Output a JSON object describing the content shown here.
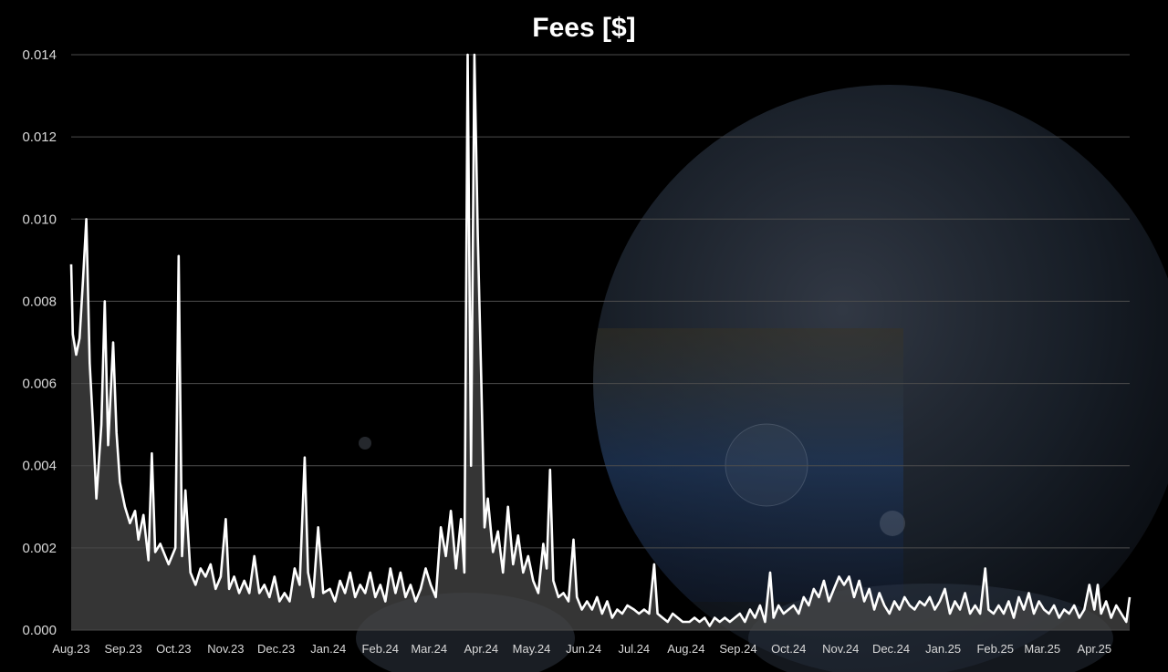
{
  "chart_data": {
    "type": "area",
    "title": "Fees [$]",
    "xlabel": "",
    "ylabel": "",
    "ylim": [
      0,
      0.014
    ],
    "y_ticks": [
      "0.000",
      "0.002",
      "0.004",
      "0.006",
      "0.008",
      "0.010",
      "0.012",
      "0.014"
    ],
    "x_ticks": [
      "Aug.23",
      "Sep.23",
      "Oct.23",
      "Nov.23",
      "Dec.23",
      "Jan.24",
      "Feb.24",
      "Mar.24",
      "Apr.24",
      "May.24",
      "Jun.24",
      "Jul.24",
      "Aug.24",
      "Sep.24",
      "Oct.24",
      "Nov.24",
      "Dec.24",
      "Jan.25",
      "Feb.25",
      "Mar.25",
      "Apr.25"
    ],
    "grid": true,
    "legend": "none",
    "x_unit": "date",
    "series": [
      {
        "color": "#ffffff",
        "fill": "#4a4a4a",
        "points": [
          [
            "2023-08-01",
            0.0089
          ],
          [
            "2023-08-02",
            0.0072
          ],
          [
            "2023-08-04",
            0.0067
          ],
          [
            "2023-08-06",
            0.0071
          ],
          [
            "2023-08-08",
            0.0085
          ],
          [
            "2023-08-10",
            0.01
          ],
          [
            "2023-08-12",
            0.0065
          ],
          [
            "2023-08-14",
            0.005
          ],
          [
            "2023-08-16",
            0.0032
          ],
          [
            "2023-08-19",
            0.005
          ],
          [
            "2023-08-21",
            0.008
          ],
          [
            "2023-08-23",
            0.0045
          ],
          [
            "2023-08-26",
            0.007
          ],
          [
            "2023-08-28",
            0.0048
          ],
          [
            "2023-08-30",
            0.0036
          ],
          [
            "2023-09-02",
            0.003
          ],
          [
            "2023-09-05",
            0.0026
          ],
          [
            "2023-09-08",
            0.0029
          ],
          [
            "2023-09-10",
            0.0022
          ],
          [
            "2023-09-13",
            0.0028
          ],
          [
            "2023-09-16",
            0.0017
          ],
          [
            "2023-09-18",
            0.0043
          ],
          [
            "2023-09-20",
            0.0019
          ],
          [
            "2023-09-23",
            0.0021
          ],
          [
            "2023-09-26",
            0.0018
          ],
          [
            "2023-09-28",
            0.0016
          ],
          [
            "2023-10-02",
            0.002
          ],
          [
            "2023-10-04",
            0.0091
          ],
          [
            "2023-10-06",
            0.0018
          ],
          [
            "2023-10-08",
            0.0034
          ],
          [
            "2023-10-11",
            0.0014
          ],
          [
            "2023-10-14",
            0.0011
          ],
          [
            "2023-10-17",
            0.0015
          ],
          [
            "2023-10-20",
            0.0013
          ],
          [
            "2023-10-23",
            0.0016
          ],
          [
            "2023-10-26",
            0.001
          ],
          [
            "2023-10-29",
            0.0013
          ],
          [
            "2023-11-01",
            0.0027
          ],
          [
            "2023-11-03",
            0.001
          ],
          [
            "2023-11-06",
            0.0013
          ],
          [
            "2023-11-09",
            0.0009
          ],
          [
            "2023-11-12",
            0.0012
          ],
          [
            "2023-11-15",
            0.0009
          ],
          [
            "2023-11-18",
            0.0018
          ],
          [
            "2023-11-21",
            0.0009
          ],
          [
            "2023-11-24",
            0.0011
          ],
          [
            "2023-11-27",
            0.0008
          ],
          [
            "2023-11-30",
            0.0013
          ],
          [
            "2023-12-03",
            0.0007
          ],
          [
            "2023-12-06",
            0.0009
          ],
          [
            "2023-12-09",
            0.0007
          ],
          [
            "2023-12-12",
            0.0015
          ],
          [
            "2023-12-15",
            0.0011
          ],
          [
            "2023-12-18",
            0.0042
          ],
          [
            "2023-12-20",
            0.0014
          ],
          [
            "2023-12-23",
            0.0008
          ],
          [
            "2023-12-26",
            0.0025
          ],
          [
            "2023-12-29",
            0.0009
          ],
          [
            "2024-01-02",
            0.001
          ],
          [
            "2024-01-05",
            0.0007
          ],
          [
            "2024-01-08",
            0.0012
          ],
          [
            "2024-01-11",
            0.0009
          ],
          [
            "2024-01-14",
            0.0014
          ],
          [
            "2024-01-17",
            0.0008
          ],
          [
            "2024-01-20",
            0.0011
          ],
          [
            "2024-01-23",
            0.0009
          ],
          [
            "2024-01-26",
            0.0014
          ],
          [
            "2024-01-29",
            0.0008
          ],
          [
            "2024-02-01",
            0.0011
          ],
          [
            "2024-02-04",
            0.0007
          ],
          [
            "2024-02-07",
            0.0015
          ],
          [
            "2024-02-10",
            0.0009
          ],
          [
            "2024-02-13",
            0.0014
          ],
          [
            "2024-02-16",
            0.0008
          ],
          [
            "2024-02-19",
            0.0011
          ],
          [
            "2024-02-22",
            0.0007
          ],
          [
            "2024-02-25",
            0.001
          ],
          [
            "2024-02-28",
            0.0015
          ],
          [
            "2024-03-02",
            0.0011
          ],
          [
            "2024-03-05",
            0.0008
          ],
          [
            "2024-03-08",
            0.0025
          ],
          [
            "2024-03-11",
            0.0018
          ],
          [
            "2024-03-14",
            0.0029
          ],
          [
            "2024-03-17",
            0.0015
          ],
          [
            "2024-03-20",
            0.0027
          ],
          [
            "2024-03-22",
            0.0014
          ],
          [
            "2024-03-24",
            0.014
          ],
          [
            "2024-03-26",
            0.004
          ],
          [
            "2024-03-28",
            0.014
          ],
          [
            "2024-03-30",
            0.0096
          ],
          [
            "2024-04-01",
            0.0062
          ],
          [
            "2024-04-03",
            0.0025
          ],
          [
            "2024-04-05",
            0.0032
          ],
          [
            "2024-04-08",
            0.0019
          ],
          [
            "2024-04-11",
            0.0024
          ],
          [
            "2024-04-14",
            0.0014
          ],
          [
            "2024-04-17",
            0.003
          ],
          [
            "2024-04-20",
            0.0016
          ],
          [
            "2024-04-23",
            0.0023
          ],
          [
            "2024-04-26",
            0.0014
          ],
          [
            "2024-04-29",
            0.0018
          ],
          [
            "2024-05-02",
            0.0012
          ],
          [
            "2024-05-05",
            0.0009
          ],
          [
            "2024-05-08",
            0.0021
          ],
          [
            "2024-05-10",
            0.0015
          ],
          [
            "2024-05-12",
            0.0039
          ],
          [
            "2024-05-14",
            0.0012
          ],
          [
            "2024-05-17",
            0.0008
          ],
          [
            "2024-05-20",
            0.0009
          ],
          [
            "2024-05-23",
            0.0007
          ],
          [
            "2024-05-26",
            0.0022
          ],
          [
            "2024-05-28",
            0.0008
          ],
          [
            "2024-05-31",
            0.0005
          ],
          [
            "2024-06-03",
            0.0007
          ],
          [
            "2024-06-06",
            0.0005
          ],
          [
            "2024-06-09",
            0.0008
          ],
          [
            "2024-06-12",
            0.0004
          ],
          [
            "2024-06-15",
            0.0007
          ],
          [
            "2024-06-18",
            0.0003
          ],
          [
            "2024-06-21",
            0.0005
          ],
          [
            "2024-06-24",
            0.0004
          ],
          [
            "2024-06-27",
            0.0006
          ],
          [
            "2024-07-01",
            0.0005
          ],
          [
            "2024-07-04",
            0.0004
          ],
          [
            "2024-07-07",
            0.0005
          ],
          [
            "2024-07-10",
            0.0004
          ],
          [
            "2024-07-13",
            0.0016
          ],
          [
            "2024-07-15",
            0.0004
          ],
          [
            "2024-07-18",
            0.0003
          ],
          [
            "2024-07-21",
            0.0002
          ],
          [
            "2024-07-24",
            0.0004
          ],
          [
            "2024-07-27",
            0.0003
          ],
          [
            "2024-07-30",
            0.0002
          ],
          [
            "2024-08-03",
            0.0002
          ],
          [
            "2024-08-06",
            0.0003
          ],
          [
            "2024-08-09",
            0.0002
          ],
          [
            "2024-08-12",
            0.0003
          ],
          [
            "2024-08-15",
            0.0001
          ],
          [
            "2024-08-18",
            0.0003
          ],
          [
            "2024-08-21",
            0.0002
          ],
          [
            "2024-08-24",
            0.0003
          ],
          [
            "2024-08-27",
            0.0002
          ],
          [
            "2024-08-30",
            0.0003
          ],
          [
            "2024-09-02",
            0.0004
          ],
          [
            "2024-09-05",
            0.0002
          ],
          [
            "2024-09-08",
            0.0005
          ],
          [
            "2024-09-11",
            0.0003
          ],
          [
            "2024-09-14",
            0.0006
          ],
          [
            "2024-09-17",
            0.0002
          ],
          [
            "2024-09-20",
            0.0014
          ],
          [
            "2024-09-22",
            0.0003
          ],
          [
            "2024-09-25",
            0.0006
          ],
          [
            "2024-09-28",
            0.0004
          ],
          [
            "2024-10-01",
            0.0005
          ],
          [
            "2024-10-04",
            0.0006
          ],
          [
            "2024-10-07",
            0.0004
          ],
          [
            "2024-10-10",
            0.0008
          ],
          [
            "2024-10-13",
            0.0006
          ],
          [
            "2024-10-16",
            0.001
          ],
          [
            "2024-10-19",
            0.0008
          ],
          [
            "2024-10-22",
            0.0012
          ],
          [
            "2024-10-25",
            0.0007
          ],
          [
            "2024-10-28",
            0.001
          ],
          [
            "2024-10-31",
            0.0013
          ],
          [
            "2024-11-03",
            0.0011
          ],
          [
            "2024-11-06",
            0.0013
          ],
          [
            "2024-11-09",
            0.0008
          ],
          [
            "2024-11-12",
            0.0012
          ],
          [
            "2024-11-15",
            0.0007
          ],
          [
            "2024-11-18",
            0.001
          ],
          [
            "2024-11-21",
            0.0005
          ],
          [
            "2024-11-24",
            0.0009
          ],
          [
            "2024-11-27",
            0.0006
          ],
          [
            "2024-11-30",
            0.0004
          ],
          [
            "2024-12-03",
            0.0007
          ],
          [
            "2024-12-06",
            0.0005
          ],
          [
            "2024-12-09",
            0.0008
          ],
          [
            "2024-12-12",
            0.0006
          ],
          [
            "2024-12-15",
            0.0005
          ],
          [
            "2024-12-18",
            0.0007
          ],
          [
            "2024-12-21",
            0.0006
          ],
          [
            "2024-12-24",
            0.0008
          ],
          [
            "2024-12-27",
            0.0005
          ],
          [
            "2024-12-30",
            0.0007
          ],
          [
            "2025-01-02",
            0.001
          ],
          [
            "2025-01-05",
            0.0004
          ],
          [
            "2025-01-08",
            0.0007
          ],
          [
            "2025-01-11",
            0.0005
          ],
          [
            "2025-01-14",
            0.0009
          ],
          [
            "2025-01-17",
            0.0004
          ],
          [
            "2025-01-20",
            0.0006
          ],
          [
            "2025-01-23",
            0.0004
          ],
          [
            "2025-01-26",
            0.0015
          ],
          [
            "2025-01-28",
            0.0005
          ],
          [
            "2025-01-31",
            0.0004
          ],
          [
            "2025-02-03",
            0.0006
          ],
          [
            "2025-02-06",
            0.0004
          ],
          [
            "2025-02-09",
            0.0007
          ],
          [
            "2025-02-12",
            0.0003
          ],
          [
            "2025-02-15",
            0.0008
          ],
          [
            "2025-02-18",
            0.0005
          ],
          [
            "2025-02-21",
            0.0009
          ],
          [
            "2025-02-24",
            0.0004
          ],
          [
            "2025-02-27",
            0.0007
          ],
          [
            "2025-03-02",
            0.0005
          ],
          [
            "2025-03-05",
            0.0004
          ],
          [
            "2025-03-08",
            0.0006
          ],
          [
            "2025-03-11",
            0.0003
          ],
          [
            "2025-03-14",
            0.0005
          ],
          [
            "2025-03-17",
            0.0004
          ],
          [
            "2025-03-20",
            0.0006
          ],
          [
            "2025-03-23",
            0.0003
          ],
          [
            "2025-03-26",
            0.0005
          ],
          [
            "2025-03-29",
            0.0011
          ],
          [
            "2025-04-01",
            0.0005
          ],
          [
            "2025-04-03",
            0.0011
          ],
          [
            "2025-04-05",
            0.0004
          ],
          [
            "2025-04-08",
            0.0007
          ],
          [
            "2025-04-11",
            0.0003
          ],
          [
            "2025-04-14",
            0.0006
          ],
          [
            "2025-04-17",
            0.0004
          ],
          [
            "2025-04-20",
            0.0002
          ],
          [
            "2025-04-22",
            0.0008
          ]
        ]
      }
    ]
  }
}
